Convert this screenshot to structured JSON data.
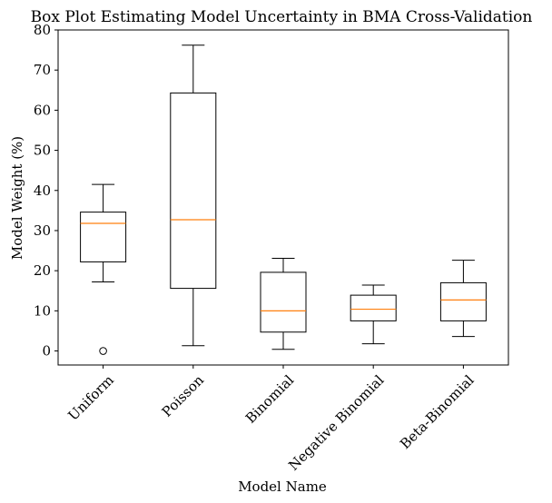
{
  "chart_data": {
    "type": "box",
    "title": "Box Plot Estimating Model Uncertainty in BMA Cross-Validation",
    "xlabel": "Model Name",
    "ylabel": "Model Weight (%)",
    "ylim": [
      -3.5,
      80
    ],
    "yticks": [
      0,
      10,
      20,
      30,
      40,
      50,
      60,
      70,
      80
    ],
    "categories": [
      "Uniform",
      "Poisson",
      "Binomial",
      "Negative Binomial",
      "Beta-Binomial"
    ],
    "boxes": [
      {
        "whisker_low": 17.2,
        "q1": 22.2,
        "median": 31.8,
        "q3": 34.6,
        "whisker_high": 41.5,
        "outliers": [
          0
        ]
      },
      {
        "whisker_low": 1.3,
        "q1": 15.6,
        "median": 32.7,
        "q3": 64.3,
        "whisker_high": 76.2,
        "outliers": []
      },
      {
        "whisker_low": 0.4,
        "q1": 4.7,
        "median": 10.0,
        "q3": 19.6,
        "whisker_high": 23.1,
        "outliers": []
      },
      {
        "whisker_low": 1.8,
        "q1": 7.5,
        "median": 10.4,
        "q3": 13.9,
        "whisker_high": 16.4,
        "outliers": []
      },
      {
        "whisker_low": 3.6,
        "q1": 7.5,
        "median": 12.7,
        "q3": 17.0,
        "whisker_high": 22.6,
        "outliers": []
      }
    ],
    "grid": false,
    "colors": {
      "box": "#000000",
      "median": "#ff7f0e",
      "background": "#ffffff"
    }
  }
}
